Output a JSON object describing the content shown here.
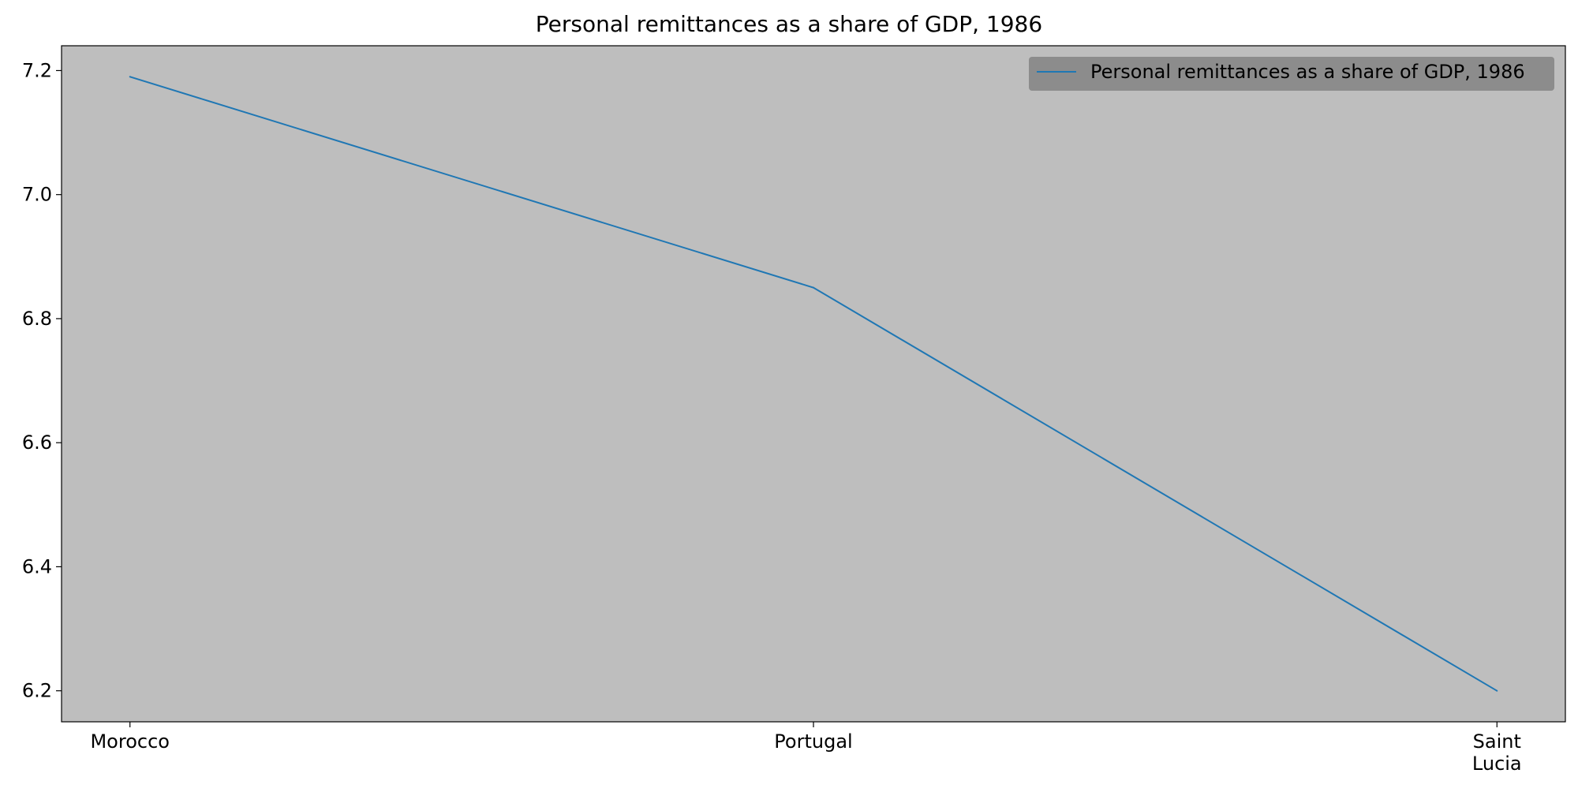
{
  "chart_data": {
    "type": "line",
    "title": "Personal remittances as a share of GDP, 1986",
    "categories": [
      "Morocco",
      "Portugal",
      "Saint Lucia"
    ],
    "category_tick_labels": [
      [
        "Morocco"
      ],
      [
        "Portugal"
      ],
      [
        "Saint",
        "Lucia"
      ]
    ],
    "series": [
      {
        "name": "Personal remittances as a share of GDP, 1986",
        "values": [
          7.19,
          6.85,
          6.2
        ],
        "color": "#1f77b4"
      }
    ],
    "xlabel": "",
    "ylabel": "",
    "ylim": [
      6.15,
      7.24
    ],
    "yticks": [
      6.2,
      6.4,
      6.6,
      6.8,
      7.0,
      7.2
    ],
    "ytick_labels": [
      "6.2",
      "6.4",
      "6.6",
      "6.8",
      "7.0",
      "7.2"
    ],
    "grid": false,
    "legend_position": "top-right",
    "plot_background": "#bebebe",
    "legend_background": "#8c8c8c"
  }
}
